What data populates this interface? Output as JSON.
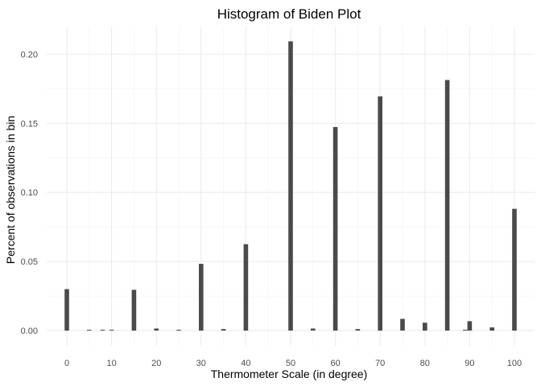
{
  "chart_data": {
    "type": "bar",
    "title": "Histogram of Biden Plot",
    "xlabel": "Thermometer Scale (in degree)",
    "ylabel": "Percent of observations in bin",
    "x_ticks": [
      0,
      10,
      20,
      30,
      40,
      50,
      60,
      70,
      80,
      90,
      100
    ],
    "y_ticks": [
      0.0,
      0.05,
      0.1,
      0.15,
      0.2
    ],
    "y_tick_labels": [
      "0.00",
      "0.05",
      "0.10",
      "0.15",
      "0.20"
    ],
    "xlim": [
      -4.5,
      104.5
    ],
    "ylim": [
      -0.011,
      0.22
    ],
    "grid": true,
    "bar_color": "#4a4a4a",
    "bars": [
      {
        "x": 0,
        "y": 0.03
      },
      {
        "x": 5,
        "y": 0.0006
      },
      {
        "x": 8,
        "y": 0.0006
      },
      {
        "x": 10,
        "y": 0.0006
      },
      {
        "x": 15,
        "y": 0.0295
      },
      {
        "x": 20,
        "y": 0.0015
      },
      {
        "x": 25,
        "y": 0.0006
      },
      {
        "x": 30,
        "y": 0.0483
      },
      {
        "x": 35,
        "y": 0.0011
      },
      {
        "x": 40,
        "y": 0.0625
      },
      {
        "x": 50,
        "y": 0.2093
      },
      {
        "x": 55,
        "y": 0.0015
      },
      {
        "x": 60,
        "y": 0.1473
      },
      {
        "x": 65,
        "y": 0.0011
      },
      {
        "x": 70,
        "y": 0.1695
      },
      {
        "x": 75,
        "y": 0.0085
      },
      {
        "x": 80,
        "y": 0.0057
      },
      {
        "x": 85,
        "y": 0.1813
      },
      {
        "x": 89,
        "y": 0.0006
      },
      {
        "x": 90,
        "y": 0.0068
      },
      {
        "x": 95,
        "y": 0.0023
      },
      {
        "x": 100,
        "y": 0.0881
      }
    ]
  }
}
